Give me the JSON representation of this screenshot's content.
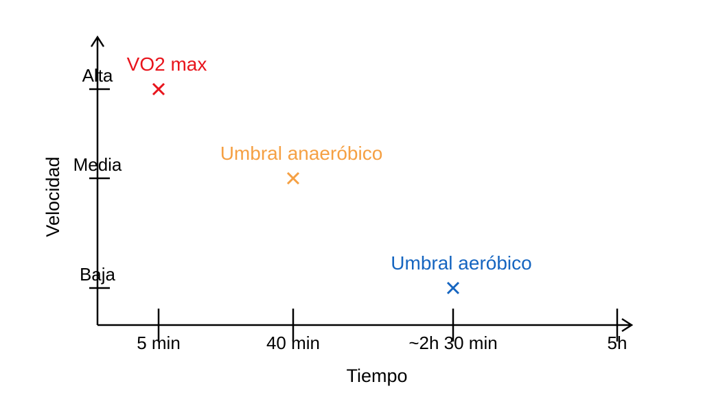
{
  "chart_data": {
    "type": "scatter",
    "xlabel": "Tiempo",
    "ylabel": "Velocidad",
    "x_ticks": [
      "5 min",
      "40 min",
      "~2h 30 min",
      "5h"
    ],
    "y_ticks": [
      "Baja",
      "Media",
      "Alta"
    ],
    "points": [
      {
        "label": "VO2 max",
        "x": "5 min",
        "y": "Alta",
        "color": "#e8141c"
      },
      {
        "label": "Umbral anaeróbico",
        "x": "40 min",
        "y": "Media",
        "color": "#f5a043"
      },
      {
        "label": "Umbral aeróbico",
        "x": "~2h 30 min",
        "y": "Baja",
        "color": "#1565c0"
      }
    ]
  }
}
